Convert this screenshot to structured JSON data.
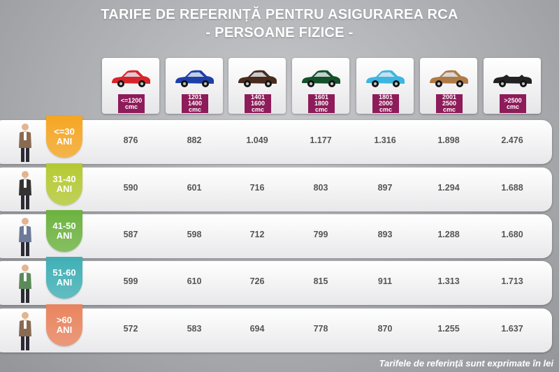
{
  "header": {
    "title": "TARIFE DE REFERINȚĂ PENTRU ASIGURAREA RCA",
    "subtitle": "- PERSOANE FIZICE -"
  },
  "table": {
    "columns": [
      {
        "lines": [
          "<=1200",
          "cmc"
        ],
        "color": "#d8232a"
      },
      {
        "lines": [
          "1201",
          "1400",
          "cmc"
        ],
        "color": "#1f3fa8"
      },
      {
        "lines": [
          "1401",
          "1600",
          "cmc"
        ],
        "color": "#4a2a1e"
      },
      {
        "lines": [
          "1601",
          "1800",
          "cmc"
        ],
        "color": "#14502a"
      },
      {
        "lines": [
          "1801",
          "2000",
          "cmc"
        ],
        "color": "#3cb6e0"
      },
      {
        "lines": [
          "2001",
          "2500",
          "cmc"
        ],
        "color": "#b07a45"
      },
      {
        "lines": [
          ">2500",
          "cmc"
        ],
        "color": "#222222"
      }
    ],
    "rows": [
      {
        "age": [
          "<=30",
          "ANI"
        ],
        "color": "#f5a623",
        "values": [
          "876",
          "882",
          "1.049",
          "1.177",
          "1.316",
          "1.898",
          "2.476"
        ]
      },
      {
        "age": [
          "31-40",
          "ANI"
        ],
        "color": "#b5c933",
        "values": [
          "590",
          "601",
          "716",
          "803",
          "897",
          "1.294",
          "1.688"
        ]
      },
      {
        "age": [
          "41-50",
          "ANI"
        ],
        "color": "#6cb33f",
        "values": [
          "587",
          "598",
          "712",
          "799",
          "893",
          "1.288",
          "1.680"
        ]
      },
      {
        "age": [
          "51-60",
          "ANI"
        ],
        "color": "#3fb0b5",
        "values": [
          "599",
          "610",
          "726",
          "815",
          "911",
          "1.313",
          "1.713"
        ]
      },
      {
        "age": [
          ">60",
          "ANI"
        ],
        "color": "#e9845e",
        "values": [
          "572",
          "583",
          "694",
          "778",
          "870",
          "1.255",
          "1.637"
        ]
      }
    ]
  },
  "footer": {
    "note": "Tarifele de referință sunt exprimate în lei"
  }
}
